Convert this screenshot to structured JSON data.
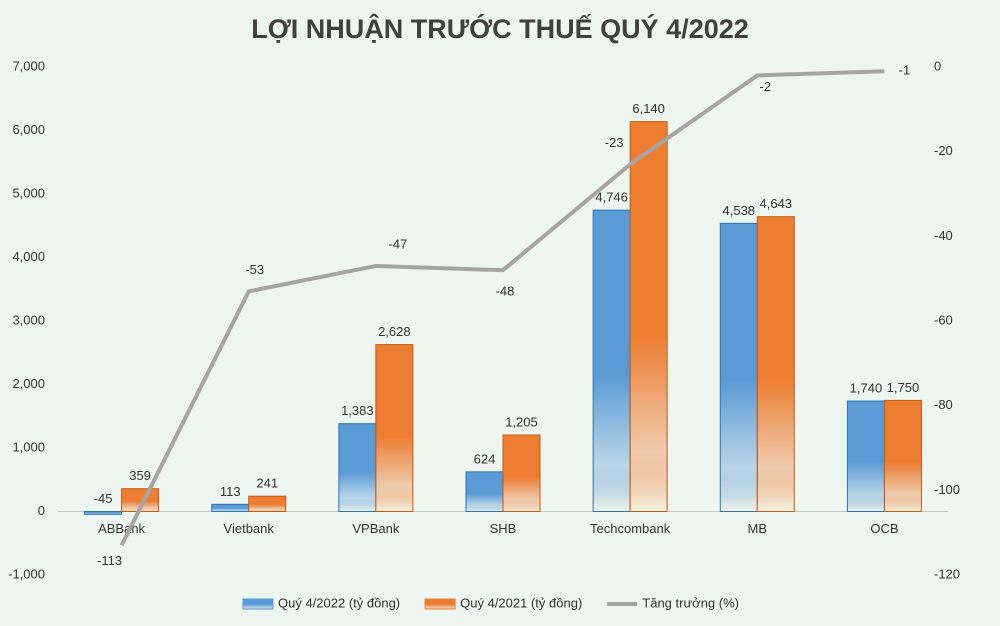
{
  "chart_data": {
    "type": "bar_line",
    "title": "LỢI NHUẬN TRƯỚC THUẾ QUÝ 4/2022",
    "categories": [
      "ABBank",
      "Vietbank",
      "VPBank",
      "SHB",
      "Techcombank",
      "MB",
      "OCB"
    ],
    "series": [
      {
        "name": "Quý 4/2022 (tỷ đồng)",
        "type": "bar",
        "color": "#5b9bd5",
        "values": [
          -45,
          113,
          1383,
          624,
          4746,
          4538,
          1740
        ],
        "value_labels": [
          "-45",
          "113",
          "1,383",
          "624",
          "4,746",
          "4,538",
          "1,740"
        ]
      },
      {
        "name": "Quý 4/2021 (tỷ đồng)",
        "type": "bar",
        "color": "#ed7d31",
        "values": [
          359,
          241,
          2628,
          1205,
          6140,
          4643,
          1750
        ],
        "value_labels": [
          "359",
          "241",
          "2,628",
          "1,205",
          "6,140",
          "4,643",
          "1,750"
        ]
      },
      {
        "name": "Tăng trưởng (%)",
        "type": "line",
        "color": "#a5a5a5",
        "axis": "y2",
        "values": [
          -113,
          -53,
          -47,
          -48,
          -23,
          -2,
          -1
        ]
      }
    ],
    "ylim": [
      -1000,
      7000
    ],
    "yticks": [
      {
        "value": -1000,
        "label": "-1,000"
      },
      0,
      {
        "value": 1000,
        "label": "1,000"
      },
      {
        "value": 2000,
        "label": "2,000"
      },
      {
        "value": 3000,
        "label": "3,000"
      },
      {
        "value": 4000,
        "label": "4,000"
      },
      {
        "value": 5000,
        "label": "5,000"
      },
      {
        "value": 6000,
        "label": "6,000"
      },
      {
        "value": 7000,
        "label": "7,000"
      }
    ],
    "y2lim": [
      -120,
      0
    ],
    "y2ticks": [
      -120,
      -100,
      -80,
      -60,
      -40,
      -20,
      0
    ],
    "grid": false,
    "legend": "bottom"
  }
}
